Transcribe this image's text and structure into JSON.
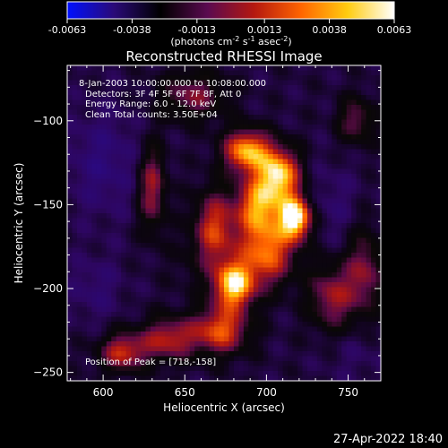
{
  "chart_data": {
    "type": "heatmap",
    "title": "Reconstructed RHESSI Image",
    "xlabel": "Heliocentric X (arcsec)",
    "ylabel": "Heliocentric Y (arcsec)",
    "xlim": [
      578,
      770
    ],
    "ylim": [
      -255,
      -67
    ],
    "xticks": [
      600,
      650,
      700,
      750
    ],
    "yticks": [
      -100,
      -150,
      -200,
      -250
    ],
    "colorbar": {
      "range": [
        -0.0063,
        0.0063
      ],
      "ticks": [
        "-0.0063",
        "-0.0038",
        "-0.0013",
        "0.0013",
        "0.0038",
        "0.0063"
      ],
      "unit_main": "(photons cm",
      "unit_exp1": "-2",
      "unit_mid": " s",
      "unit_exp2": "-1",
      "unit_tail": " asec",
      "unit_exp3": "-2",
      "unit_end": ")",
      "colors": [
        "#0010ff",
        "#2a0a78",
        "#000000",
        "#5a0a50",
        "#b41810",
        "#ff6400",
        "#ffcc10",
        "#ffffff"
      ]
    },
    "annotations": [
      " 8-Jan-2003 10:00:00.000 to 10:08:00.000",
      "Detectors: 3F 4F 5F 6F 7F 8F, Att 0",
      "Energy Range: 6.0 - 12.0 keV",
      "Clean     Total counts: 3.50E+04"
    ],
    "peak_label": "Position of Peak = [718,-158]",
    "sources": [
      {
        "x": 718,
        "y": -158,
        "value": 0.0063,
        "sx": 7,
        "sy": 9
      },
      {
        "x": 708,
        "y": -132,
        "value": 0.0052,
        "sx": 9,
        "sy": 11
      },
      {
        "x": 688,
        "y": -118,
        "value": 0.005,
        "sx": 10,
        "sy": 9
      },
      {
        "x": 695,
        "y": -150,
        "value": 0.004,
        "sx": 10,
        "sy": 12
      },
      {
        "x": 680,
        "y": -198,
        "value": 0.0055,
        "sx": 9,
        "sy": 10
      },
      {
        "x": 700,
        "y": -178,
        "value": 0.004,
        "sx": 12,
        "sy": 14
      },
      {
        "x": 668,
        "y": -165,
        "value": 0.003,
        "sx": 9,
        "sy": 16
      },
      {
        "x": 672,
        "y": -225,
        "value": 0.0035,
        "sx": 12,
        "sy": 10
      },
      {
        "x": 640,
        "y": -230,
        "value": 0.0025,
        "sx": 12,
        "sy": 9
      },
      {
        "x": 612,
        "y": -238,
        "value": 0.0028,
        "sx": 10,
        "sy": 8
      },
      {
        "x": 630,
        "y": -140,
        "value": 0.0022,
        "sx": 6,
        "sy": 18
      },
      {
        "x": 655,
        "y": -85,
        "value": 0.0015,
        "sx": 14,
        "sy": 10
      },
      {
        "x": 740,
        "y": -205,
        "value": 0.002,
        "sx": 10,
        "sy": 14
      },
      {
        "x": 760,
        "y": -190,
        "value": 0.0016,
        "sx": 8,
        "sy": 18
      },
      {
        "x": 755,
        "y": -100,
        "value": 0.0012,
        "sx": 8,
        "sy": 10
      },
      {
        "x": 600,
        "y": -125,
        "value": -0.0035,
        "sx": 16,
        "sy": 22
      },
      {
        "x": 595,
        "y": -200,
        "value": -0.003,
        "sx": 12,
        "sy": 14
      },
      {
        "x": 740,
        "y": -150,
        "value": -0.0028,
        "sx": 12,
        "sy": 18
      },
      {
        "x": 755,
        "y": -240,
        "value": -0.0025,
        "sx": 14,
        "sy": 12
      },
      {
        "x": 650,
        "y": -185,
        "value": -0.0012,
        "sx": 8,
        "sy": 12
      }
    ]
  },
  "footer": {
    "timestamp": "27-Apr-2022 18:40"
  }
}
